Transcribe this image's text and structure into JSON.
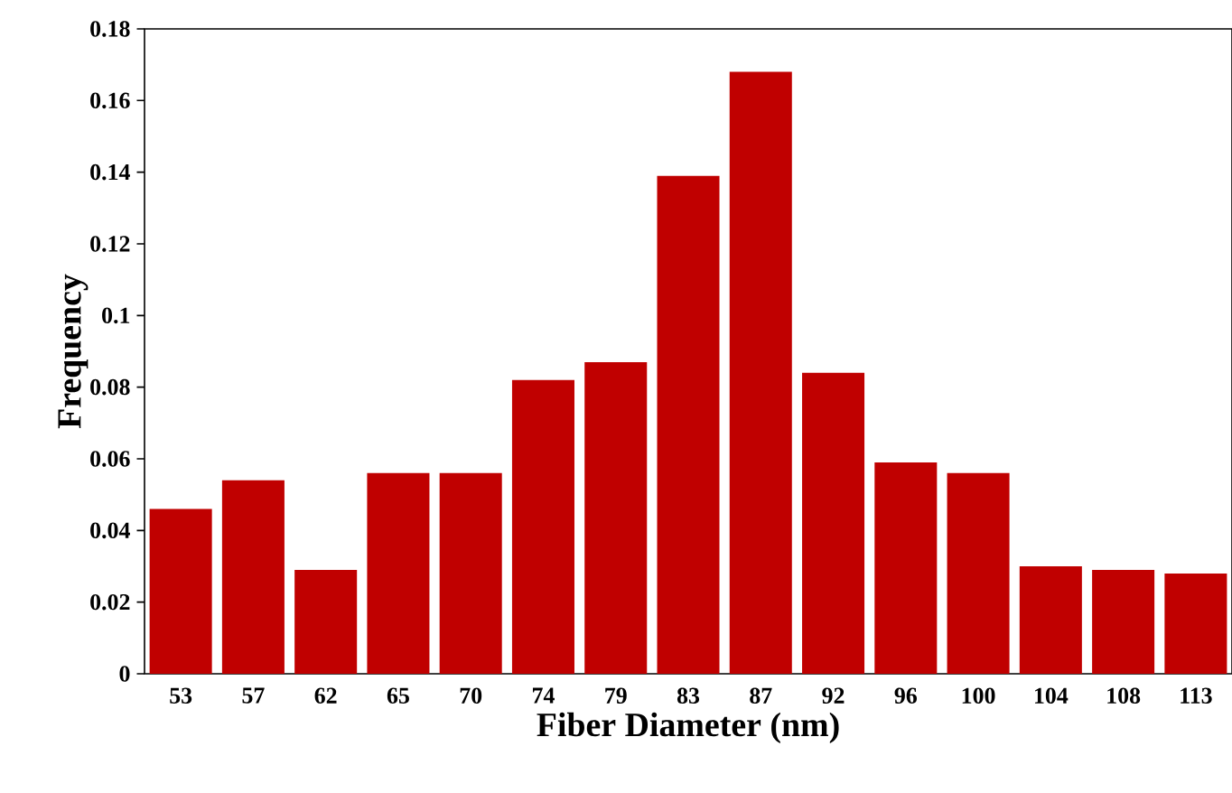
{
  "chart_data": {
    "type": "bar",
    "xlabel": "Fiber Diameter (nm)",
    "ylabel": "Frequency",
    "categories": [
      "53",
      "57",
      "62",
      "65",
      "70",
      "74",
      "79",
      "83",
      "87",
      "92",
      "96",
      "100",
      "104",
      "108",
      "113"
    ],
    "values": [
      0.046,
      0.054,
      0.029,
      0.056,
      0.056,
      0.082,
      0.087,
      0.139,
      0.168,
      0.084,
      0.059,
      0.056,
      0.03,
      0.029,
      0.028
    ],
    "color": "#c00000",
    "ylim": [
      0,
      0.18
    ],
    "yticks": [
      0,
      0.02,
      0.04,
      0.06,
      0.08,
      0.1,
      0.12,
      0.14,
      0.16,
      0.18
    ]
  }
}
